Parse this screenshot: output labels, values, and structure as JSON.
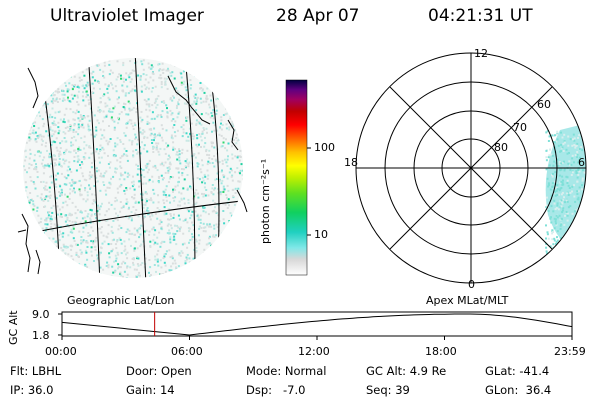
{
  "header": {
    "instrument": "Ultraviolet Imager",
    "date": "28 Apr 07",
    "time": "04:21:31 UT"
  },
  "colorbar": {
    "unit_label": "photon cm⁻²s⁻¹",
    "ticks": [
      "100",
      "10"
    ]
  },
  "polar": {
    "mlt_labels": [
      "12",
      "18",
      "6",
      "0"
    ],
    "lat_labels": [
      "60",
      "70",
      "80"
    ]
  },
  "altitude_plot": {
    "left_title": "Geographic Lat/Lon",
    "right_title": "Apex MLat/MLT",
    "ylabel": "GC Alt",
    "y_ticks": [
      "9.0",
      "1.8"
    ],
    "x_ticks": [
      "00:00",
      "06:00",
      "12:00",
      "18:00",
      "23:59"
    ],
    "current_time_hours": 4.36
  },
  "status": {
    "filter": "Flt: LBHL",
    "door": "Door: Open",
    "mode": "Mode: Normal",
    "gc_alt": "GC Alt: 4.9 Re",
    "glat": "GLat: -41.4",
    "ip": "IP: 36.0",
    "gain": "Gain: 14",
    "dsp": "Dsp:   -7.0",
    "seq": "Seq: 39",
    "glon": "GLon:  36.4"
  },
  "colors": {
    "marker": "#c00000",
    "low_intensity": "#80e8e0",
    "mid_intensity": "#20d890"
  }
}
